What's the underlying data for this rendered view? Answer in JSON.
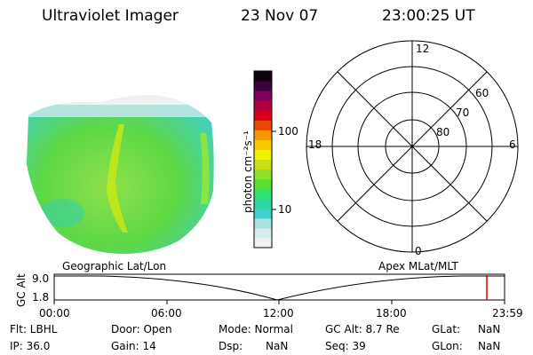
{
  "header": {
    "instrument": "Ultraviolet Imager",
    "date": "23 Nov 07",
    "time": "23:00:25 UT"
  },
  "colorbar": {
    "unit_label": "photon cm⁻²s⁻¹",
    "tick_100": "100",
    "tick_10": "10",
    "colors": [
      "#f0f0f0",
      "#d8ecec",
      "#a8e0e0",
      "#40d0d0",
      "#2cd8a0",
      "#30e070",
      "#5ae030",
      "#90e030",
      "#c8e018",
      "#f0f000",
      "#f8c800",
      "#f89800",
      "#e84800",
      "#d80018",
      "#b00040",
      "#800060",
      "#400040",
      "#100010"
    ]
  },
  "polar_plot": {
    "mlt_labels": {
      "top": "12",
      "bottom": "0",
      "left": "18",
      "right": "6"
    },
    "lat_labels": [
      "60",
      "70",
      "80"
    ]
  },
  "timeline": {
    "ylabel": "GC Alt",
    "ytick_top": "9.0",
    "ytick_bottom": "1.8",
    "left_title": "Geographic Lat/Lon",
    "right_title": "Apex MLat/MLT",
    "x_ticks": [
      "00:00",
      "06:00",
      "12:00",
      "18:00",
      "23:59"
    ],
    "marker_color": "#e00000"
  },
  "footer": {
    "flt": "Flt: LBHL",
    "ip": "IP: 36.0",
    "door": "Door: Open",
    "gain": "Gain: 14",
    "mode": "Mode: Normal",
    "dsp_label": "Dsp:",
    "dsp_value": "NaN",
    "gcalt": "GC Alt: 8.7 Re",
    "seq": "Seq: 39",
    "glat_label": "GLat:",
    "glat_value": "NaN",
    "glon_label": "GLon:",
    "glon_value": "NaN"
  }
}
